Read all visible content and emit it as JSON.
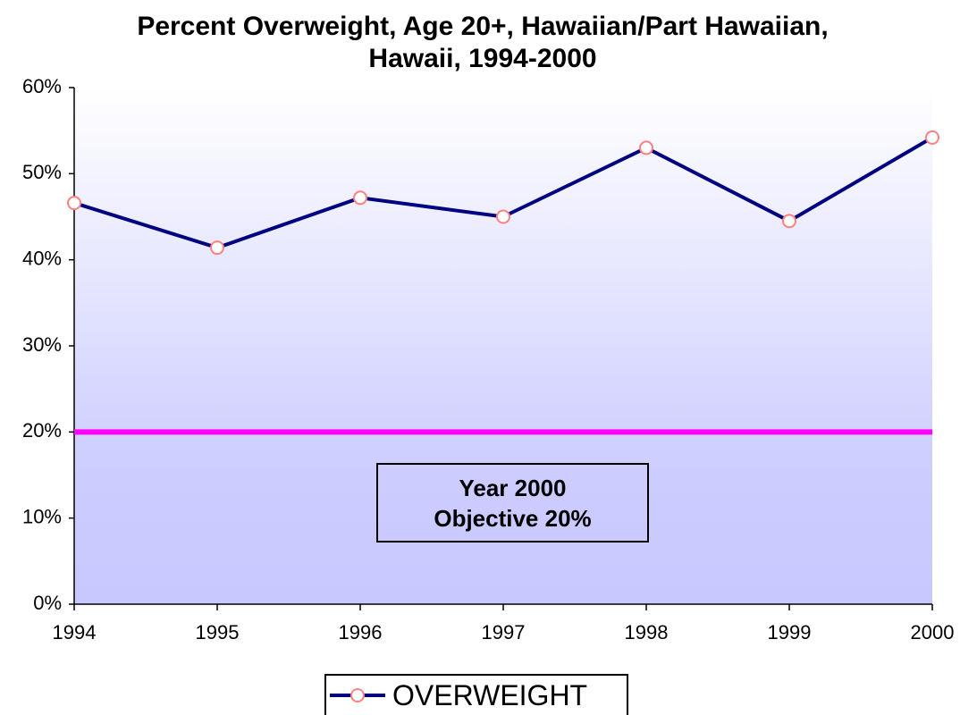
{
  "chart_data": {
    "type": "line",
    "title": "Percent Overweight, Age 20+, Hawaiian/Part Hawaiian, Hawaii, 1994-2000",
    "categories": [
      "1994",
      "1995",
      "1996",
      "1997",
      "1998",
      "1999",
      "2000"
    ],
    "series": [
      {
        "name": "OVERWEIGHT",
        "color": "#000080",
        "marker_color": "#ff8080",
        "values": [
          46.6,
          41.4,
          47.2,
          45.0,
          53.0,
          44.5,
          54.2
        ]
      }
    ],
    "ylim": [
      0,
      60
    ],
    "yticks": [
      {
        "value": 0,
        "label": "0%"
      },
      {
        "value": 10,
        "label": "10%"
      },
      {
        "value": 20,
        "label": "20%"
      },
      {
        "value": 30,
        "label": "30%"
      },
      {
        "value": 40,
        "label": "40%"
      },
      {
        "value": 50,
        "label": "50%"
      },
      {
        "value": 60,
        "label": "60%"
      }
    ],
    "reference_line": {
      "value": 20,
      "color": "#ff00ff"
    },
    "annotation": "Year 2000 Objective 20%",
    "legend": "bottom"
  }
}
